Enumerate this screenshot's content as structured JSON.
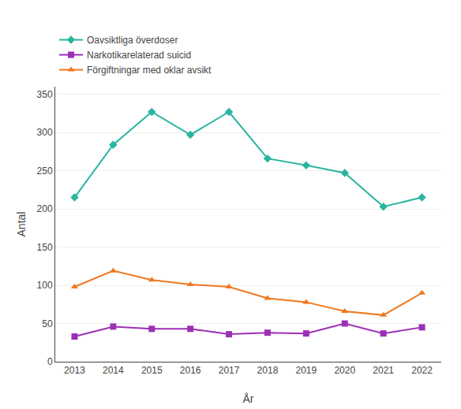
{
  "chart_data": {
    "type": "line",
    "x": [
      2013,
      2014,
      2015,
      2016,
      2017,
      2018,
      2019,
      2020,
      2021,
      2022
    ],
    "series": [
      {
        "name": "Oavsiktliga överdoser",
        "color": "#2ab5a0",
        "marker": "diamond",
        "values": [
          215,
          284,
          327,
          297,
          327,
          266,
          257,
          247,
          203,
          215
        ]
      },
      {
        "name": "Narkotikarelaterad suicid",
        "color": "#9b30b5",
        "marker": "square",
        "values": [
          33,
          46,
          43,
          43,
          36,
          38,
          37,
          50,
          37,
          45
        ]
      },
      {
        "name": "Förgiftningar med oklar avsikt",
        "color": "#f07820",
        "marker": "triangle-up",
        "values": [
          98,
          119,
          107,
          101,
          98,
          83,
          78,
          66,
          61,
          90
        ]
      }
    ],
    "xlabel": "År",
    "ylabel": "Antal",
    "xlim": [
      2012.5,
      2022.5
    ],
    "xticks": [
      2013,
      2014,
      2015,
      2016,
      2017,
      2018,
      2019,
      2020,
      2021,
      2022
    ],
    "ylim": [
      0,
      360
    ],
    "yticks": [
      0,
      50,
      100,
      150,
      200,
      250,
      300,
      350
    ],
    "grid": "y",
    "legend": "top"
  }
}
